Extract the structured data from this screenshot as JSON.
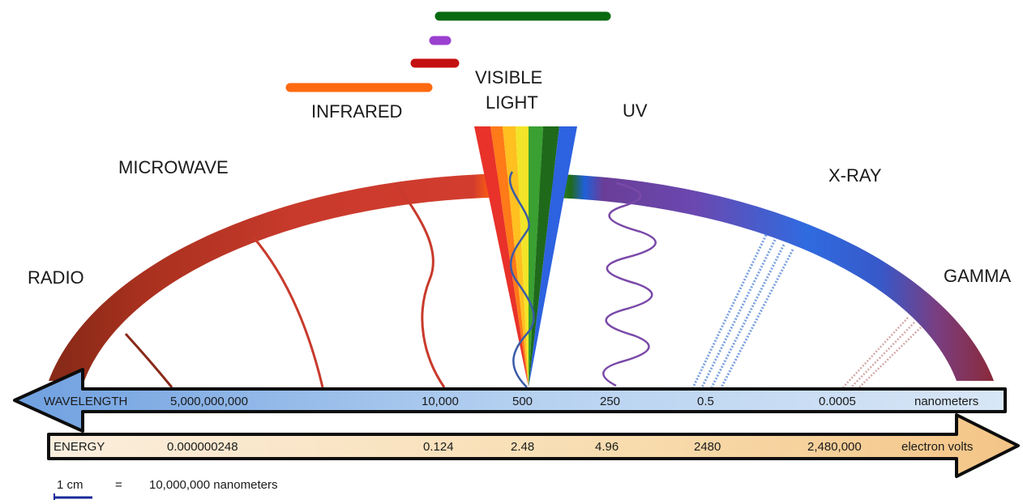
{
  "regions": {
    "radio": "RADIO",
    "microwave": "MICROWAVE",
    "infrared": "INFRARED",
    "visible_line1": "VISIBLE",
    "visible_line2": "LIGHT",
    "uv": "UV",
    "xray": "X-RAY",
    "gamma": "GAMMA"
  },
  "wavelength_axis": {
    "label": "WAVELENGTH",
    "values": [
      "5,000,000,000",
      "10,000",
      "500",
      "250",
      "0.5",
      "0.0005"
    ],
    "unit": "nanometers"
  },
  "energy_axis": {
    "label": "ENERGY",
    "values": [
      "0.000000248",
      "0.124",
      "2.48",
      "4.96",
      "2480",
      "2,480,000"
    ],
    "unit": "electron volts"
  },
  "scale": {
    "left": "1 cm",
    "equals": "=",
    "right": "10,000,000 nanometers"
  },
  "colors": {
    "infrared_bar": "#ff6a10",
    "red_bar": "#c41010",
    "violet_bar": "#9a40d0",
    "green_bar": "#0a6a10",
    "wavelength_arrow": "#a8c8ec",
    "energy_arrow": "#f8dcae"
  }
}
